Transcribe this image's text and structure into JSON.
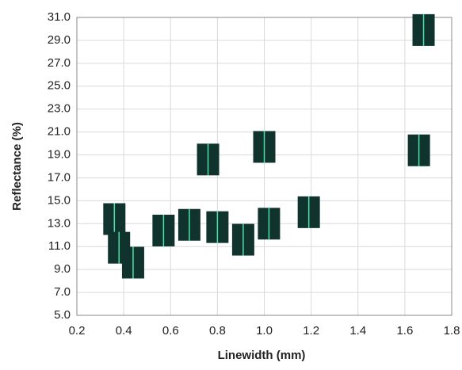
{
  "chart_data": {
    "type": "scatter",
    "x_label": "Linewidth (mm)",
    "y_label": "Reflectance  (%)",
    "x": [
      0.36,
      0.38,
      0.44,
      0.57,
      0.68,
      0.76,
      0.8,
      0.91,
      1.0,
      1.02,
      1.19,
      1.66,
      1.68
    ],
    "values": [
      13.4,
      10.9,
      9.6,
      12.4,
      12.9,
      18.6,
      12.7,
      11.6,
      19.7,
      13.0,
      14.0,
      19.4,
      29.9
    ],
    "color": "#10332e",
    "line_color": "#4fe0a8",
    "xlim": [
      0.2,
      1.8
    ],
    "xticks": [
      0.2,
      0.4,
      0.6,
      0.8,
      {
        "value": 1,
        "label": "1.0"
      },
      1.2,
      1.4,
      1.6,
      1.8
    ],
    "ylim": [
      5,
      31
    ],
    "yticks": [
      {
        "value": 5,
        "label": "5.0"
      },
      {
        "value": 7,
        "label": "7.0"
      },
      {
        "value": 9,
        "label": "9.0"
      },
      {
        "value": 11,
        "label": "11.0"
      },
      {
        "value": 13,
        "label": "13.0"
      },
      {
        "value": 15,
        "label": "15.0"
      },
      {
        "value": 17,
        "label": "17.0"
      },
      {
        "value": 19,
        "label": "19.0"
      },
      {
        "value": 21,
        "label": "21.0"
      },
      {
        "value": 23,
        "label": "23.0"
      },
      {
        "value": 25,
        "label": "25.0"
      },
      {
        "value": 27,
        "label": "27.0"
      },
      {
        "value": 29,
        "label": "29.0"
      },
      {
        "value": 31,
        "label": "31.0"
      }
    ],
    "grid": true
  }
}
